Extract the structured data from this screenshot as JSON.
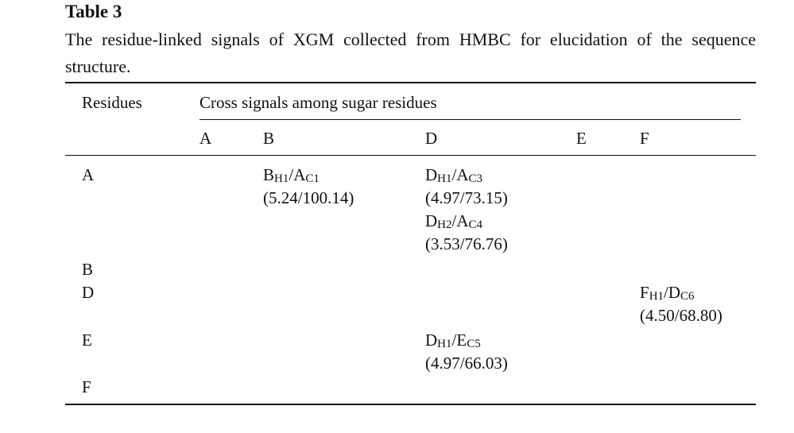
{
  "table": {
    "label": "Table 3",
    "caption": "The residue-linked signals of XGM collected from HMBC for elucidation of the sequence structure.",
    "residues_header": "Residues",
    "group_header": "Cross signals among sugar residues",
    "columns": [
      "A",
      "B",
      "D",
      "E",
      "F"
    ],
    "rows": [
      {
        "residue": "A",
        "cells": [
          null,
          [
            {
              "parts": [
                "B",
                "H1",
                "/A",
                "C1"
              ],
              "shifts": "(5.24/100.14)"
            }
          ],
          [
            {
              "parts": [
                "D",
                "H1",
                "/A",
                "C3"
              ],
              "shifts": "(4.97/73.15)"
            },
            {
              "parts": [
                "D",
                "H2",
                "/A",
                "C4"
              ],
              "shifts": "(3.53/76.76)"
            }
          ],
          null,
          null
        ]
      },
      {
        "residue": "B",
        "cells": [
          null,
          null,
          null,
          null,
          null
        ]
      },
      {
        "residue": "D",
        "cells": [
          null,
          null,
          null,
          null,
          [
            {
              "parts": [
                "F",
                "H1",
                "/D",
                "C6"
              ],
              "shifts": "(4.50/68.80)"
            }
          ]
        ]
      },
      {
        "residue": "E",
        "cells": [
          null,
          null,
          [
            {
              "parts": [
                "D",
                "H1",
                "/E",
                "C5"
              ],
              "shifts": "(4.97/66.03)"
            }
          ],
          null,
          null
        ]
      },
      {
        "residue": "F",
        "cells": [
          null,
          null,
          null,
          null,
          null
        ]
      }
    ]
  }
}
